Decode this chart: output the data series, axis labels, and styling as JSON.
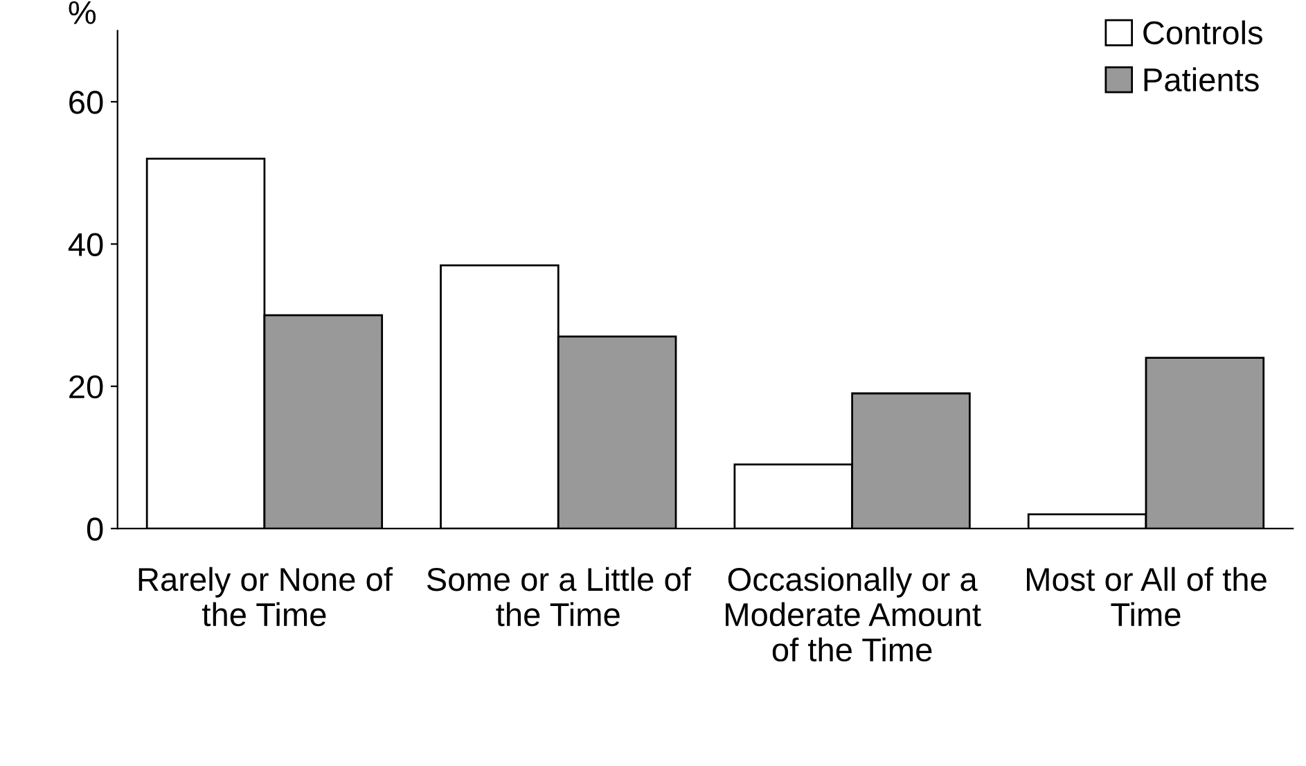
{
  "chart_data": {
    "type": "bar",
    "ylabel": "%",
    "categories": [
      "Rarely or None of\nthe Time",
      "Some or a Little of\nthe Time",
      "Occasionally or a\nModerate Amount\nof the Time",
      "Most or All of the\nTime"
    ],
    "series": [
      {
        "name": "Controls",
        "color": "#ffffff",
        "values": [
          52,
          37,
          9,
          2
        ]
      },
      {
        "name": "Patients",
        "color": "#999999",
        "values": [
          30,
          27,
          19,
          24
        ]
      }
    ],
    "ylim": [
      0,
      70
    ],
    "yticks": [
      0,
      20,
      40,
      60
    ],
    "grid": false,
    "legend": "top right"
  }
}
